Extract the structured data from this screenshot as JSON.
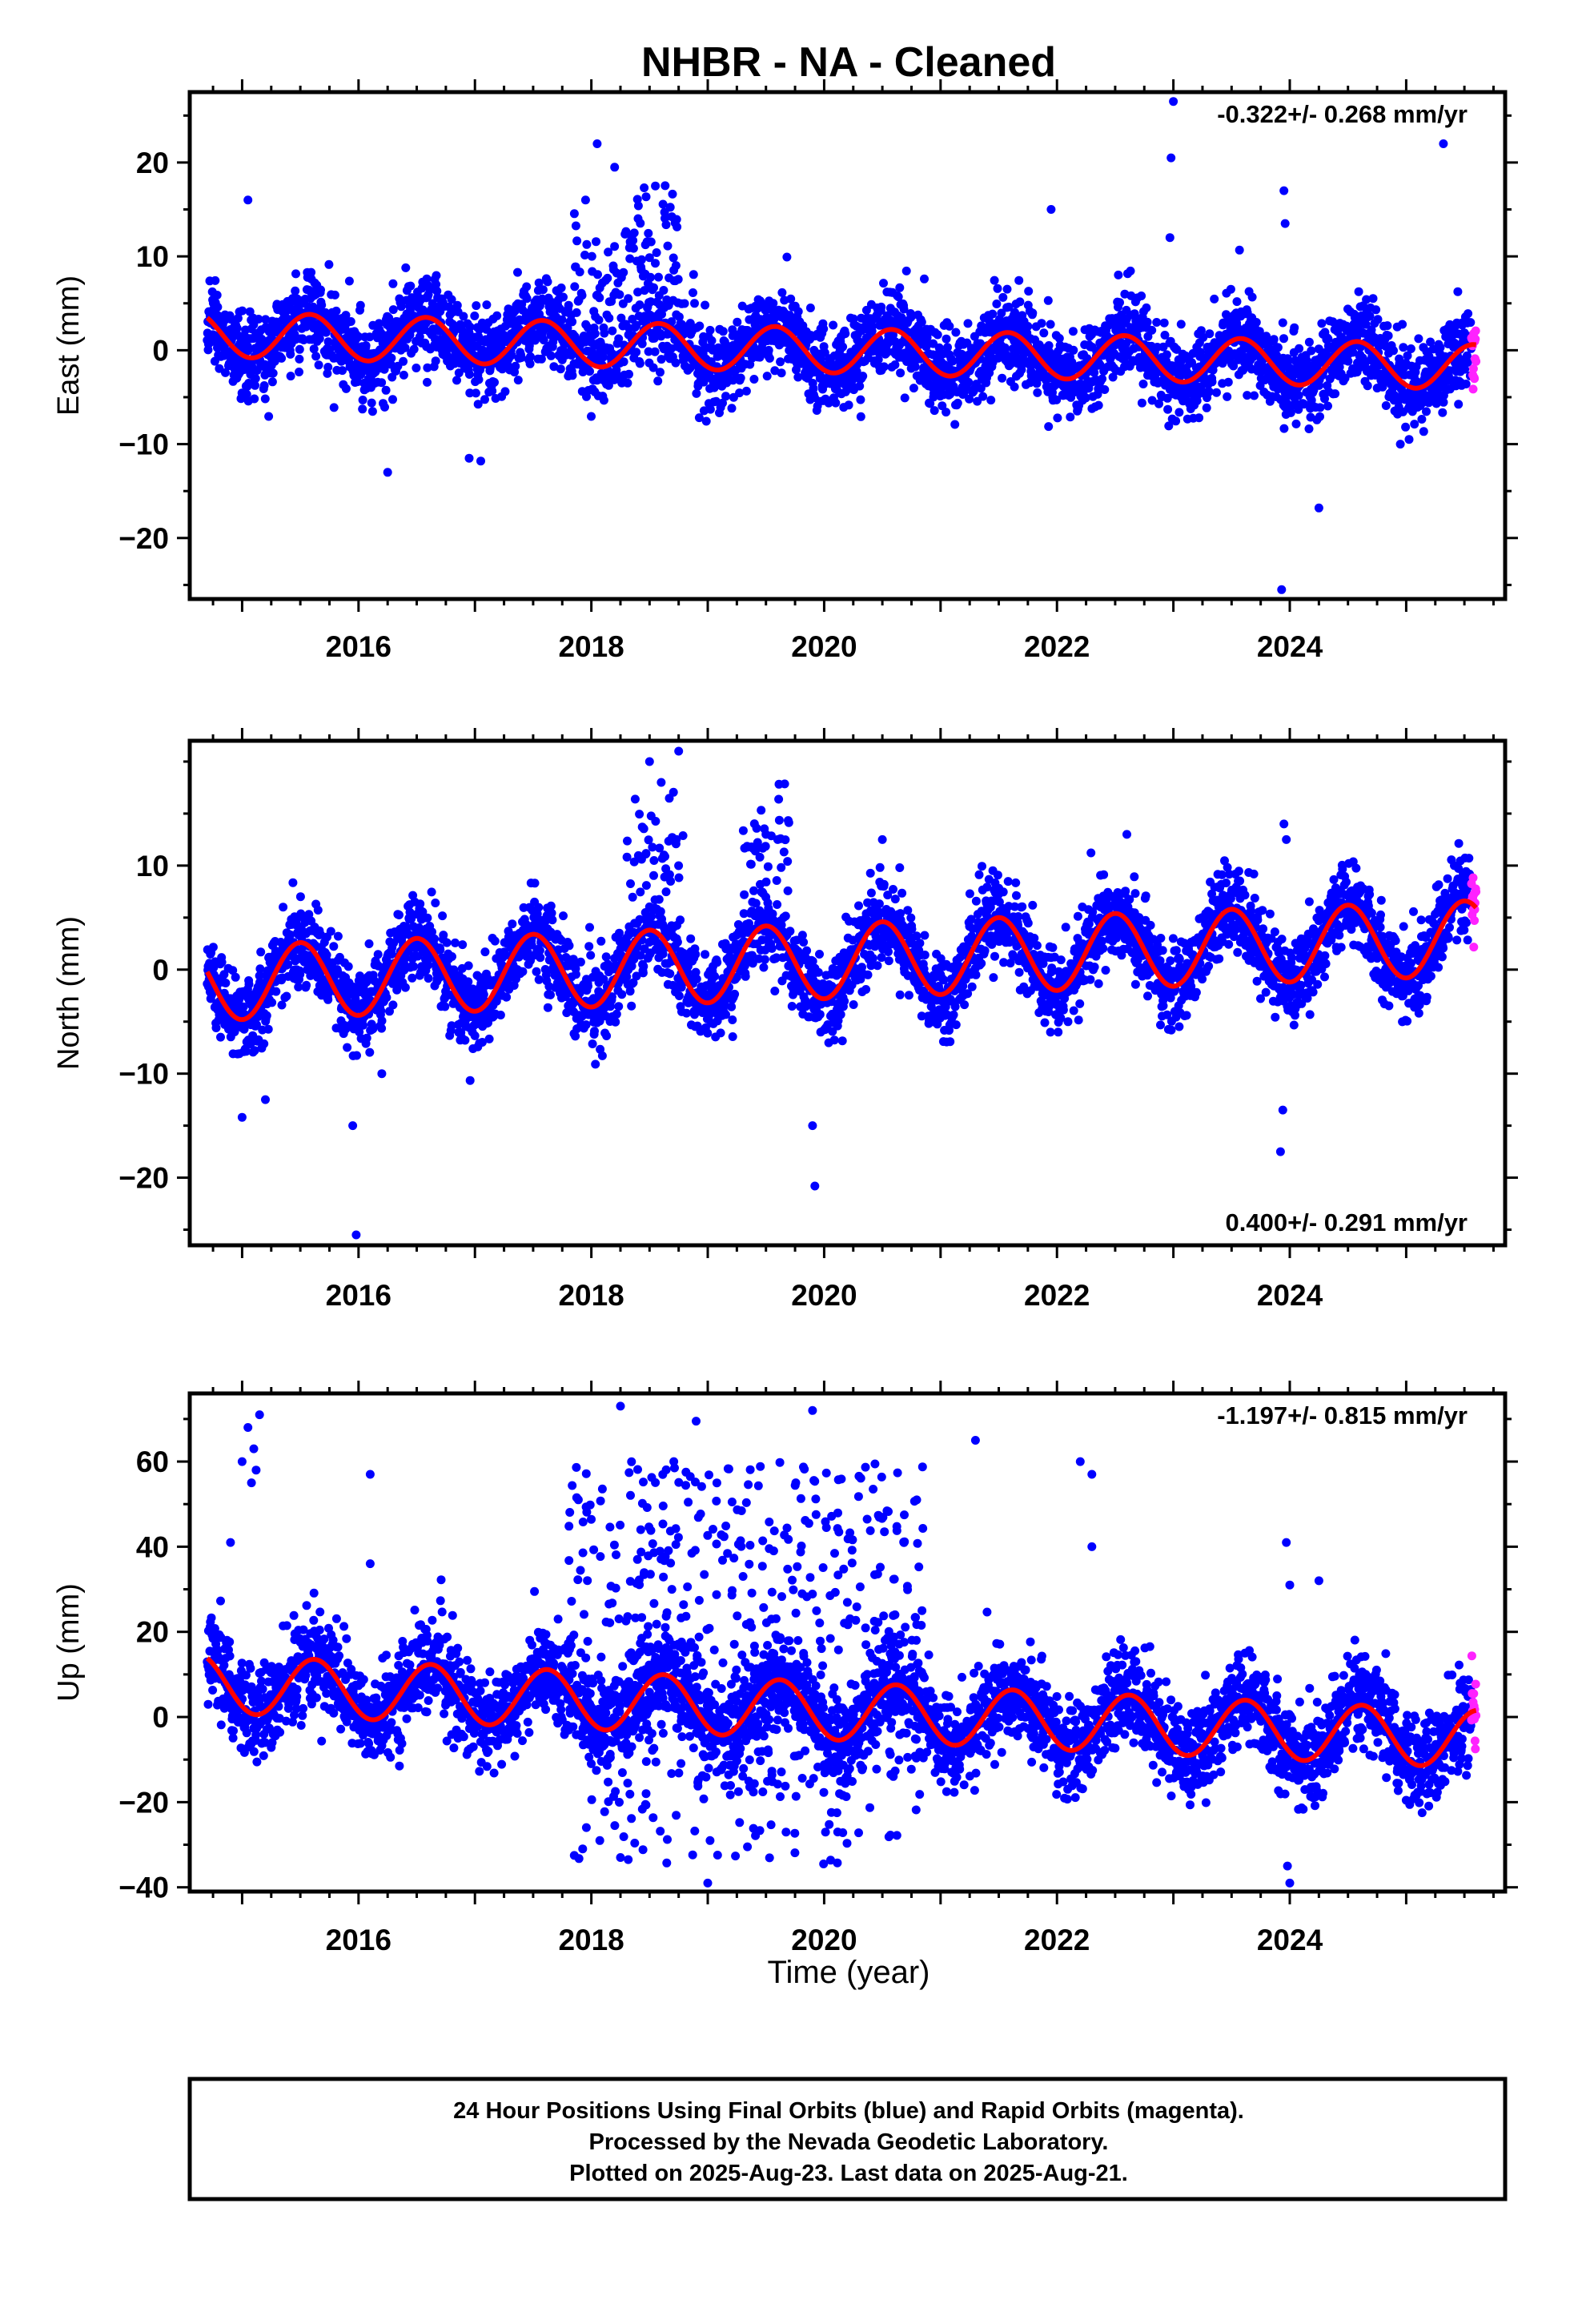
{
  "title": "NHBR  - NA - Cleaned",
  "xlabel": "Time (year)",
  "footer": {
    "line1": "24 Hour Positions Using Final Orbits (blue) and Rapid Orbits (magenta).",
    "line2": "Processed by the Nevada Geodetic Laboratory.",
    "line3": "Plotted on 2025-Aug-23. Last data on 2025-Aug-21."
  },
  "colors": {
    "final": "#0000ff",
    "rapid": "#ff22ff",
    "fit": "#ff0000",
    "axis": "#000000"
  },
  "chart_data": [
    {
      "type": "scatter",
      "component": "east",
      "ylabel": "East (mm)",
      "rate_label": "-0.322+/- 0.268 mm/yr",
      "xlim": [
        2014.55,
        2025.85
      ],
      "ylim": [
        -26.5,
        27.5
      ],
      "xticks": [
        2016,
        2018,
        2020,
        2022,
        2024
      ],
      "yticks": [
        -20,
        -10,
        0,
        10,
        20
      ],
      "data_start": 2014.7,
      "data_end": 2025.6,
      "rapid_start": 2025.48,
      "fit": {
        "name": "trend",
        "intercept_at_2020": -0.0,
        "rate": -0.322,
        "amplitude": 2.4,
        "phase_peak": 2015.58
      },
      "noise_sigma": 2.2,
      "outliers": [
        {
          "x": 2018.05,
          "y": 22.0
        },
        {
          "x": 2018.2,
          "y": 19.5
        },
        {
          "x": 2018.55,
          "y": 17.5
        },
        {
          "x": 2015.05,
          "y": 16.0
        },
        {
          "x": 2017.95,
          "y": 16.0
        },
        {
          "x": 2021.95,
          "y": 15.0
        },
        {
          "x": 2022.98,
          "y": 20.5
        },
        {
          "x": 2023.0,
          "y": 26.5
        },
        {
          "x": 2025.32,
          "y": 22.0
        },
        {
          "x": 2023.95,
          "y": 17.0
        },
        {
          "x": 2023.96,
          "y": 13.5
        },
        {
          "x": 2022.97,
          "y": 12.0
        },
        {
          "x": 2016.25,
          "y": -13.0
        },
        {
          "x": 2016.95,
          "y": -11.5
        },
        {
          "x": 2017.05,
          "y": -11.8
        },
        {
          "x": 2024.25,
          "y": -16.8
        },
        {
          "x": 2023.93,
          "y": -25.5
        },
        {
          "x": 2024.95,
          "y": -10.0
        }
      ]
    },
    {
      "type": "scatter",
      "component": "north",
      "ylabel": "North (mm)",
      "rate_label": "0.400+/- 0.291 mm/yr",
      "xlim": [
        2014.55,
        2025.85
      ],
      "ylim": [
        -26.5,
        22.0
      ],
      "xticks": [
        2016,
        2018,
        2020,
        2022,
        2024
      ],
      "yticks": [
        -20,
        -10,
        0,
        10
      ],
      "data_start": 2014.7,
      "data_end": 2025.6,
      "rapid_start": 2025.48,
      "fit": {
        "name": "trend",
        "intercept_at_2020": 0.8,
        "rate": 0.4,
        "amplitude": 3.6,
        "phase_peak": 2015.5
      },
      "noise_sigma": 2.0,
      "outliers": [
        {
          "x": 2018.5,
          "y": 20.0
        },
        {
          "x": 2018.75,
          "y": 21.0
        },
        {
          "x": 2018.6,
          "y": 18.0
        },
        {
          "x": 2019.5,
          "y": 13.0
        },
        {
          "x": 2020.5,
          "y": 12.5
        },
        {
          "x": 2022.6,
          "y": 13.0
        },
        {
          "x": 2023.95,
          "y": 14.0
        },
        {
          "x": 2023.97,
          "y": 12.5
        },
        {
          "x": 2015.0,
          "y": -14.2
        },
        {
          "x": 2015.2,
          "y": -12.5
        },
        {
          "x": 2015.95,
          "y": -15.0
        },
        {
          "x": 2015.98,
          "y": -25.5
        },
        {
          "x": 2019.9,
          "y": -15.0
        },
        {
          "x": 2019.92,
          "y": -20.8
        },
        {
          "x": 2023.92,
          "y": -17.5
        },
        {
          "x": 2023.94,
          "y": -13.5
        },
        {
          "x": 2016.2,
          "y": -10.0
        }
      ]
    },
    {
      "type": "scatter",
      "component": "up",
      "ylabel": "Up (mm)",
      "rate_label": "-1.197+/- 0.815 mm/yr",
      "xlim": [
        2014.55,
        2025.85
      ],
      "ylim": [
        -41.0,
        76.0
      ],
      "xticks": [
        2016,
        2018,
        2020,
        2022,
        2024
      ],
      "yticks": [
        -40,
        -20,
        0,
        20,
        40,
        60
      ],
      "data_start": 2014.7,
      "data_end": 2025.6,
      "rapid_start": 2025.48,
      "fit": {
        "name": "trend",
        "intercept_at_2020": 1.5,
        "rate": -1.197,
        "amplitude": 6.8,
        "phase_peak": 2015.62
      },
      "noise_sigma": 5.5,
      "outliers": [
        {
          "x": 2015.05,
          "y": 68.0
        },
        {
          "x": 2015.1,
          "y": 63.0
        },
        {
          "x": 2015.12,
          "y": 58.0
        },
        {
          "x": 2015.08,
          "y": 55.0
        },
        {
          "x": 2015.15,
          "y": 71.0
        },
        {
          "x": 2015.0,
          "y": 60.0
        },
        {
          "x": 2016.1,
          "y": 57.0
        },
        {
          "x": 2016.1,
          "y": 36.0
        },
        {
          "x": 2014.9,
          "y": 41.0
        },
        {
          "x": 2018.25,
          "y": 73.0
        },
        {
          "x": 2018.9,
          "y": 69.5
        },
        {
          "x": 2019.9,
          "y": 72.0
        },
        {
          "x": 2021.3,
          "y": 65.0
        },
        {
          "x": 2022.2,
          "y": 60.0
        },
        {
          "x": 2022.3,
          "y": 57.0
        },
        {
          "x": 2022.3,
          "y": 40.0
        },
        {
          "x": 2023.97,
          "y": 41.0
        },
        {
          "x": 2024.0,
          "y": 31.0
        },
        {
          "x": 2024.25,
          "y": 32.0
        },
        {
          "x": 2018.25,
          "y": -33.0
        },
        {
          "x": 2019.0,
          "y": -39.0
        },
        {
          "x": 2023.98,
          "y": -35.0
        },
        {
          "x": 2024.0,
          "y": -39.0
        }
      ],
      "scatter_burst": {
        "x_range": [
          2017.8,
          2020.85
        ],
        "y_range": [
          -35,
          60
        ],
        "count": 520
      }
    }
  ]
}
